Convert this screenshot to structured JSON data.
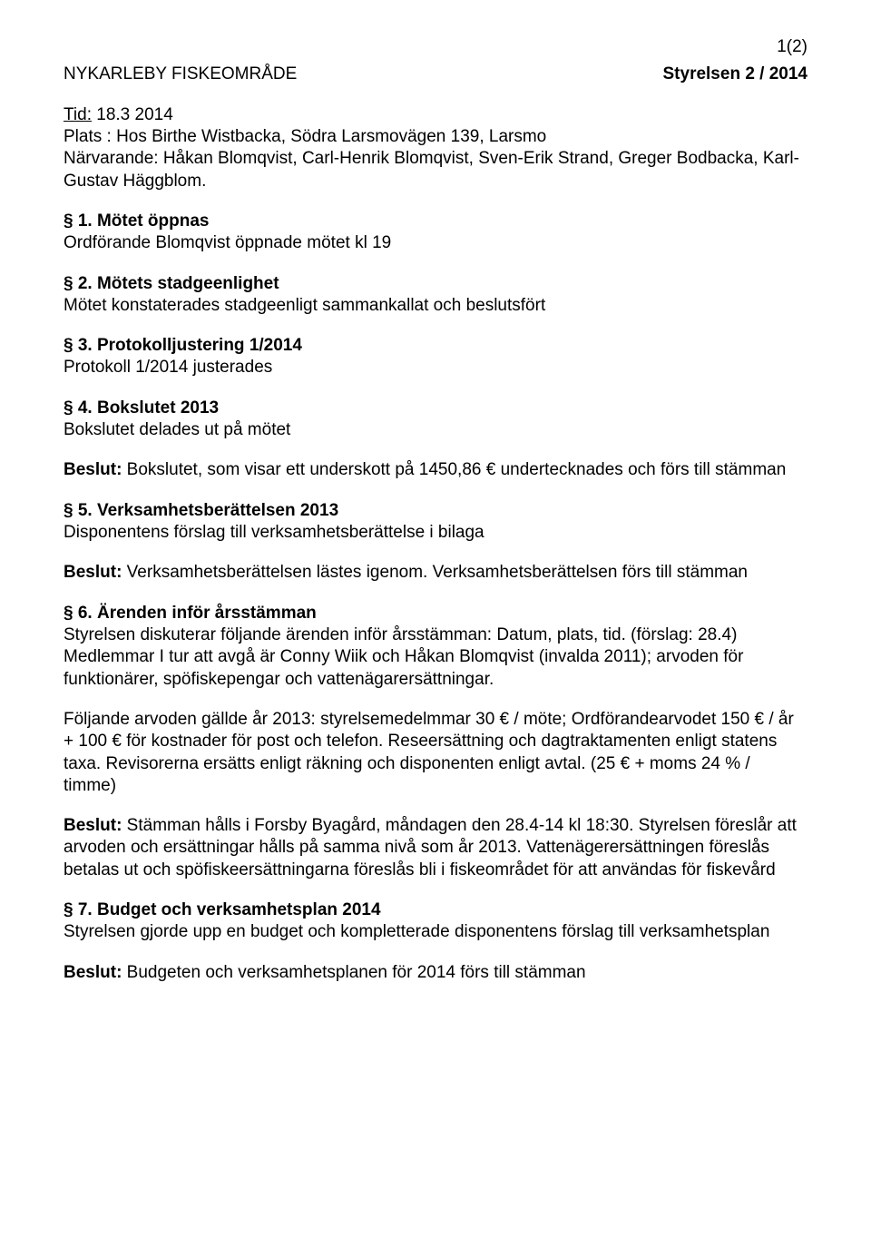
{
  "pageNumber": "1(2)",
  "header": {
    "left": "NYKARLEBY FISKEOMRÅDE",
    "right": "Styrelsen 2 / 2014"
  },
  "meeting": {
    "tidLabel": "Tid:",
    "tidValue": "  18.3 2014",
    "plats": "Plats : Hos Birthe Wistbacka, Södra Larsmovägen 139, Larsmo",
    "narvarande": "Närvarande: Håkan Blomqvist, Carl-Henrik Blomqvist, Sven-Erik Strand, Greger Bodbacka, Karl-Gustav Häggblom."
  },
  "s1": {
    "title": "§ 1. Mötet öppnas",
    "text": "Ordförande Blomqvist öppnade mötet kl 19"
  },
  "s2": {
    "title": "§ 2. Mötets stadgeenlighet",
    "text": "Mötet konstaterades stadgeenligt sammankallat och beslutsfört"
  },
  "s3": {
    "title": "§ 3. Protokolljustering 1/2014",
    "text": "Protokoll 1/2014 justerades"
  },
  "s4": {
    "title": "§ 4. Bokslutet 2013",
    "text": "Bokslutet delades ut på mötet",
    "beslutLabel": "Beslut:",
    "beslutText": " Bokslutet, som visar ett underskott på 1450,86 € undertecknades och förs till stämman"
  },
  "s5": {
    "title": "§ 5. Verksamhetsberättelsen 2013",
    "text": "Disponentens förslag till verksamhetsberättelse i bilaga",
    "beslutLabel": "Beslut:",
    "beslutText": " Verksamhetsberättelsen lästes igenom. Verksamhetsberättelsen förs till stämman"
  },
  "s6": {
    "title": "§ 6. Ärenden inför årsstämman",
    "text1": "Styrelsen diskuterar följande ärenden inför årsstämman: Datum, plats, tid. (förslag: 28.4) Medlemmar I tur att avgå är Conny Wiik och Håkan Blomqvist  (invalda 2011); arvoden för funktionärer, spöfiskepengar och vattenägarersättningar.",
    "text2": "Följande arvoden gällde år 2013: styrelsemedelmmar 30 € / möte; Ordförandearvodet 150 € / år + 100 € för kostnader för post och telefon. Reseersättning och dagtraktamenten enligt statens taxa.  Revisorerna ersätts enligt räkning och disponenten enligt avtal. (25 € + moms 24 % / timme)",
    "beslutLabel": "Beslut:",
    "beslutText": " Stämman hålls i Forsby Byagård, måndagen den 28.4-14 kl 18:30. Styrelsen föreslår att arvoden och ersättningar  hålls på samma nivå som år 2013. Vattenägerersättningen föreslås betalas ut och spöfiskeersättningarna föreslås bli i fiskeområdet för att användas för fiskevård"
  },
  "s7": {
    "title": "§ 7.  Budget och verksamhetsplan 2014",
    "text": "Styrelsen gjorde upp en budget och kompletterade disponentens förslag till verksamhetsplan",
    "beslutLabel": "Beslut:",
    "beslutText": "  Budgeten och verksamhetsplanen för 2014 förs till stämman"
  }
}
